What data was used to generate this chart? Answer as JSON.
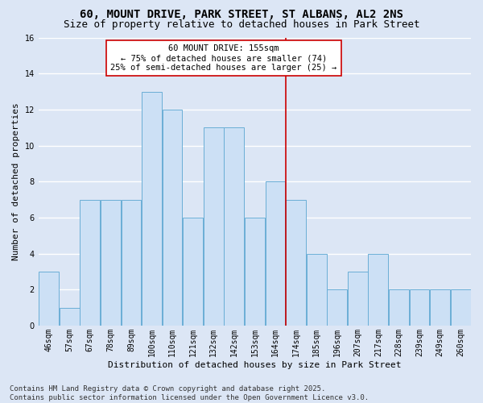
{
  "title1": "60, MOUNT DRIVE, PARK STREET, ST ALBANS, AL2 2NS",
  "title2": "Size of property relative to detached houses in Park Street",
  "xlabel": "Distribution of detached houses by size in Park Street",
  "ylabel": "Number of detached properties",
  "categories": [
    "46sqm",
    "57sqm",
    "67sqm",
    "78sqm",
    "89sqm",
    "100sqm",
    "110sqm",
    "121sqm",
    "132sqm",
    "142sqm",
    "153sqm",
    "164sqm",
    "174sqm",
    "185sqm",
    "196sqm",
    "207sqm",
    "217sqm",
    "228sqm",
    "239sqm",
    "249sqm",
    "260sqm"
  ],
  "values": [
    3,
    1,
    7,
    7,
    7,
    13,
    12,
    6,
    11,
    11,
    6,
    8,
    7,
    4,
    2,
    3,
    4,
    2,
    2,
    2,
    2
  ],
  "bar_color": "#cce0f5",
  "bar_edge_color": "#6aaed6",
  "background_color": "#dce6f5",
  "grid_color": "#ffffff",
  "vline_color": "#cc0000",
  "annotation_text": "60 MOUNT DRIVE: 155sqm\n← 75% of detached houses are smaller (74)\n25% of semi-detached houses are larger (25) →",
  "annotation_box_color": "#ffffff",
  "annotation_box_edge_color": "#cc0000",
  "ylim": [
    0,
    16
  ],
  "yticks": [
    0,
    2,
    4,
    6,
    8,
    10,
    12,
    14,
    16
  ],
  "footer": "Contains HM Land Registry data © Crown copyright and database right 2025.\nContains public sector information licensed under the Open Government Licence v3.0.",
  "title1_fontsize": 10,
  "title2_fontsize": 9,
  "xlabel_fontsize": 8,
  "ylabel_fontsize": 8,
  "tick_fontsize": 7,
  "annotation_fontsize": 7.5,
  "footer_fontsize": 6.5
}
